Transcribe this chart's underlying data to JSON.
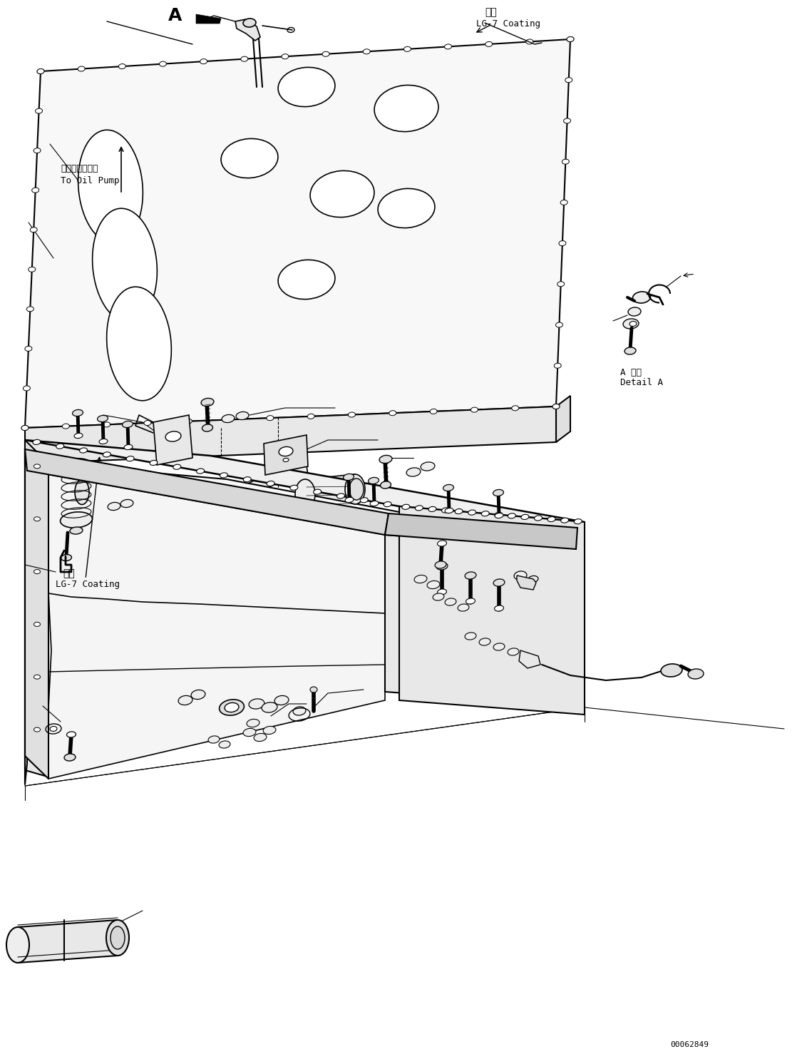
{
  "background_color": "#ffffff",
  "line_color": "#000000",
  "annotations": {
    "label_A": "A",
    "coating_top": "塗布\nLG-7 Coating",
    "oil_pump": "オイルポンプへ\nTo Oil Pump",
    "coating_lower": "塗布\nLG-7 Coating",
    "detail_A": "A 詳細\nDetail A",
    "doc_num": "00062849"
  }
}
